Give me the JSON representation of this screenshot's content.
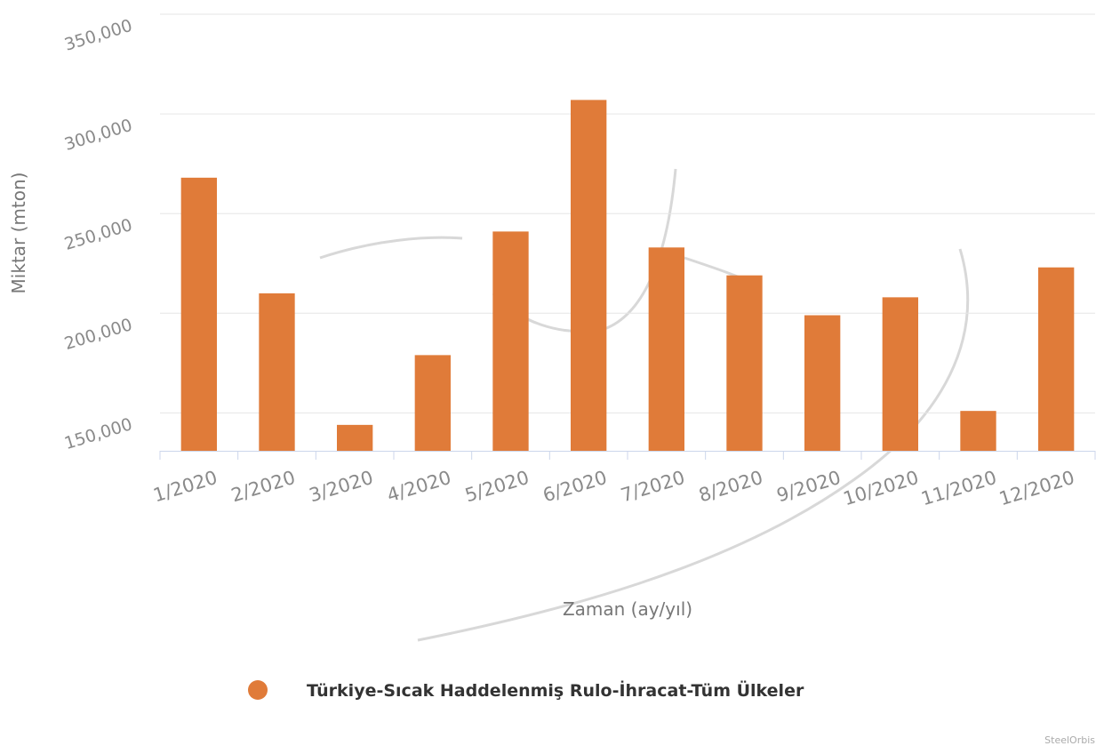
{
  "chart_data": {
    "type": "bar",
    "categories": [
      "1/2020",
      "2/2020",
      "3/2020",
      "4/2020",
      "5/2020",
      "6/2020",
      "7/2020",
      "8/2020",
      "9/2020",
      "10/2020",
      "11/2020",
      "12/2020"
    ],
    "series": [
      {
        "name": "Türkiye-Sıcak Haddelenmiş Rulo-İhracat-Tüm Ülkeler",
        "values": [
          268000,
          210000,
          144000,
          179000,
          241000,
          307000,
          233000,
          219000,
          199000,
          208000,
          151000,
          223000
        ],
        "color": "#e07b39"
      }
    ],
    "title": "",
    "xlabel": "Zaman (ay/yıl)",
    "ylabel": "Miktar (mton)",
    "ylim": [
      131000,
      350000
    ],
    "yticks": [
      150000,
      200000,
      250000,
      300000,
      350000
    ],
    "ytick_labels": [
      "150,000",
      "200,000",
      "250,000",
      "300,000",
      "350,000"
    ],
    "grid": true,
    "legend_position": "bottom-center",
    "credit": "SteelOrbis"
  }
}
